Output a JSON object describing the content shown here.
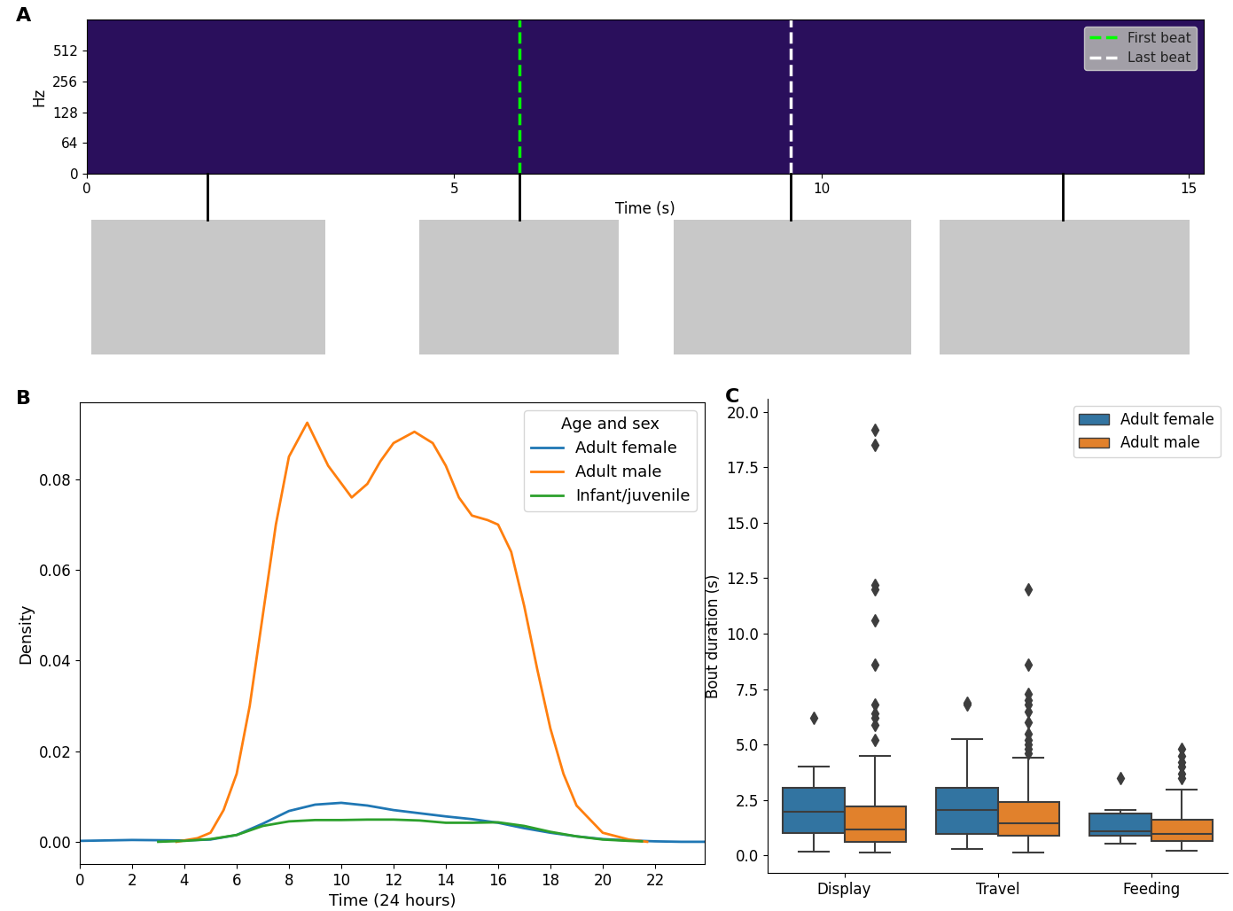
{
  "chart_data": [
    {
      "type": "spectrogram",
      "panel": "A",
      "xlabel": "Time (s)",
      "ylabel": "Hz",
      "xlim": [
        0,
        15.2
      ],
      "xticks": [
        0,
        5,
        10,
        15
      ],
      "ylim": [
        0,
        1024
      ],
      "yticks": [
        0,
        64,
        128,
        256,
        512
      ],
      "log": "y",
      "legend": "upper right",
      "series": [
        {
          "name": "First beat",
          "color": "#00ff00",
          "line_style": "dashed",
          "x": 5.89
        },
        {
          "name": "Last beat",
          "color": "#ffffff",
          "line_style": "dashed",
          "x": 9.58
        }
      ],
      "frames": [
        1.64,
        5.89,
        9.58,
        13.29
      ]
    },
    {
      "type": "line",
      "panel": "B",
      "xlabel": "Time (24 hours)",
      "ylabel": "Density",
      "xlim": [
        0,
        23.9
      ],
      "xticks": [
        0,
        2,
        4,
        6,
        8,
        10,
        12,
        14,
        16,
        18,
        20,
        22
      ],
      "ylim": [
        -0.0049,
        0.097
      ],
      "yticks": [
        {
          "value": 0.0,
          "label": "0.00"
        },
        {
          "value": 0.02,
          "label": "0.02"
        },
        {
          "value": 0.04,
          "label": "0.04"
        },
        {
          "value": 0.06,
          "label": "0.06"
        },
        {
          "value": 0.08,
          "label": "0.08"
        }
      ],
      "legend": "upper right",
      "legend_title": "Age and sex",
      "series": [
        {
          "name": "Adult female",
          "color": "#1f77b4",
          "x": [
            0,
            2,
            4,
            5,
            6,
            7,
            8,
            9,
            10,
            11,
            12,
            13,
            14,
            15,
            16,
            17,
            18,
            19,
            20,
            21,
            22,
            23,
            23.9
          ],
          "values": [
            0.0002,
            0.0004,
            0.0003,
            0.0005,
            0.0015,
            0.004,
            0.0068,
            0.0082,
            0.0086,
            0.008,
            0.007,
            0.0063,
            0.0056,
            0.005,
            0.0042,
            0.003,
            0.002,
            0.0012,
            0.0006,
            0.0003,
            0.0001,
            0.0,
            0.0
          ]
        },
        {
          "name": "Adult male",
          "color": "#ff7f0e",
          "x": [
            3.7,
            4.5,
            5,
            5.5,
            6,
            6.5,
            7,
            7.5,
            8,
            8.7,
            9.5,
            10.4,
            11,
            11.5,
            12,
            12.8,
            13.5,
            14,
            14.5,
            15,
            15.6,
            16,
            16.5,
            17,
            17.5,
            18,
            18.5,
            19,
            20,
            21,
            21.7
          ],
          "values": [
            0.0,
            0.0008,
            0.002,
            0.007,
            0.015,
            0.03,
            0.05,
            0.07,
            0.085,
            0.0925,
            0.083,
            0.076,
            0.079,
            0.084,
            0.088,
            0.0905,
            0.088,
            0.083,
            0.076,
            0.072,
            0.071,
            0.07,
            0.064,
            0.052,
            0.038,
            0.025,
            0.015,
            0.008,
            0.002,
            0.0005,
            0.0
          ]
        },
        {
          "name": "Infant/juvenile",
          "color": "#2ca02c",
          "x": [
            3,
            4,
            5,
            6,
            7,
            8,
            9,
            10,
            11,
            12,
            13,
            14,
            15,
            16,
            17,
            18,
            19,
            20,
            21,
            21.5
          ],
          "values": [
            0.0,
            0.0002,
            0.0006,
            0.0015,
            0.0035,
            0.0045,
            0.0048,
            0.0048,
            0.0049,
            0.0049,
            0.0047,
            0.0042,
            0.0042,
            0.0043,
            0.0035,
            0.0022,
            0.0012,
            0.0005,
            0.0002,
            0.0001
          ]
        }
      ]
    },
    {
      "type": "box",
      "panel": "C",
      "ylabel": "Bout duration (s)",
      "categories": [
        "Display",
        "Travel",
        "Feeding"
      ],
      "ylim": [
        -0.8,
        20.6
      ],
      "yticks": [
        {
          "value": 0.0,
          "label": "0.0"
        },
        {
          "value": 2.5,
          "label": "2.5"
        },
        {
          "value": 5.0,
          "label": "5.0"
        },
        {
          "value": 7.5,
          "label": "7.5"
        },
        {
          "value": 10.0,
          "label": "10.0"
        },
        {
          "value": 12.5,
          "label": "12.5"
        },
        {
          "value": 15.0,
          "label": "15.0"
        },
        {
          "value": 17.5,
          "label": "17.5"
        },
        {
          "value": 20.0,
          "label": "20.0"
        }
      ],
      "legend": "upper right",
      "series": [
        {
          "name": "Adult female",
          "color": "#3274a1",
          "boxes": [
            {
              "low": 0.18,
              "q1": 1.02,
              "median": 1.95,
              "q3": 3.05,
              "high": 4.0,
              "outliers": [
                6.2
              ]
            },
            {
              "low": 0.28,
              "q1": 0.95,
              "median": 2.05,
              "q3": 3.05,
              "high": 5.25,
              "outliers": [
                6.8,
                6.9
              ]
            },
            {
              "low": 0.52,
              "q1": 0.9,
              "median": 1.1,
              "q3": 1.9,
              "high": 2.05,
              "outliers": [
                3.5
              ]
            }
          ]
        },
        {
          "name": "Adult male",
          "color": "#e1812c",
          "boxes": [
            {
              "low": 0.12,
              "q1": 0.6,
              "median": 1.15,
              "q3": 2.2,
              "high": 4.5,
              "outliers": [
                5.2,
                5.9,
                6.2,
                6.4,
                6.8,
                8.6,
                10.6,
                12.0,
                12.2,
                18.5,
                19.2
              ]
            },
            {
              "low": 0.12,
              "q1": 0.9,
              "median": 1.45,
              "q3": 2.4,
              "high": 4.4,
              "outliers": [
                4.6,
                4.8,
                5.0,
                5.2,
                5.5,
                6.0,
                6.5,
                6.8,
                7.0,
                7.3,
                8.6,
                12.0
              ]
            },
            {
              "low": 0.2,
              "q1": 0.65,
              "median": 0.98,
              "q3": 1.62,
              "high": 2.95,
              "outliers": [
                3.5,
                3.7,
                4.0,
                4.2,
                4.5,
                4.8
              ]
            }
          ]
        }
      ]
    }
  ]
}
